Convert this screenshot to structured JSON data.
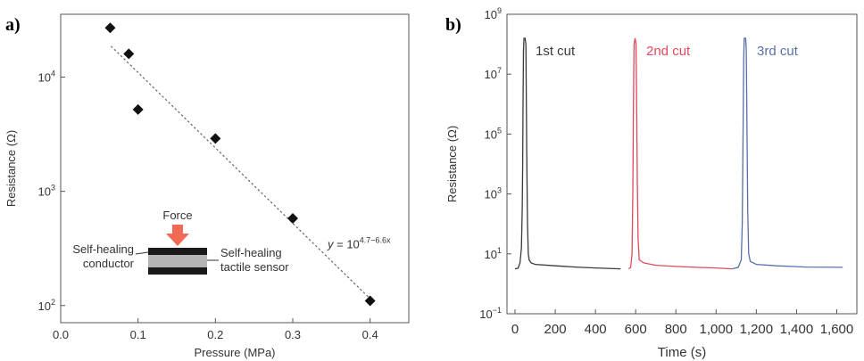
{
  "panel_labels": {
    "a": "a)",
    "b": "b)"
  },
  "chart_data": [
    {
      "type": "scatter",
      "xlabel": "Pressure (MPa)",
      "ylabel": "Resistance (Ω)",
      "xlim": [
        0.0,
        0.45
      ],
      "ylim_log10": [
        1.85,
        4.55
      ],
      "yscale": "log",
      "x_ticks": [
        "0.0",
        "0.1",
        "0.2",
        "0.3",
        "0.4"
      ],
      "x_tick_values": [
        0.0,
        0.1,
        0.2,
        0.3,
        0.4
      ],
      "y_ticks": [
        {
          "base": "10",
          "exp": "2",
          "value": 100
        },
        {
          "base": "10",
          "exp": "3",
          "value": 1000
        },
        {
          "base": "10",
          "exp": "4",
          "value": 10000
        }
      ],
      "points": [
        {
          "x": 0.064,
          "y": 27000
        },
        {
          "x": 0.088,
          "y": 16000
        },
        {
          "x": 0.1,
          "y": 5200
        },
        {
          "x": 0.2,
          "y": 2900
        },
        {
          "x": 0.3,
          "y": 580
        },
        {
          "x": 0.4,
          "y": 110
        }
      ],
      "fit": {
        "intercept_log10": 4.7,
        "slope_log10": -6.6,
        "x_range": [
          0.065,
          0.4
        ],
        "label_prefix": "y = 10",
        "label_exp": "4.7−6.6x"
      },
      "inset": {
        "force_label": "Force",
        "left_label_line1": "Self-healing",
        "left_label_line2": "conductor",
        "right_label_line1": "Self-healing",
        "right_label_line2": "tactile sensor",
        "arrow_color": "#f26a55"
      },
      "grid": false
    },
    {
      "type": "line",
      "xlabel": "Time (s)",
      "ylabel": "Resistance (Ω)",
      "xlim": [
        -40,
        1700
      ],
      "ylim_log10": [
        -1,
        9
      ],
      "yscale": "log",
      "x_ticks": [
        "0",
        "200",
        "400",
        "600",
        "800",
        "1,000",
        "1,200",
        "1,400",
        "1,600"
      ],
      "x_tick_values": [
        0,
        200,
        400,
        600,
        800,
        1000,
        1200,
        1400,
        1600
      ],
      "y_ticks": [
        {
          "base": "10",
          "exp": "−1",
          "log": -1
        },
        {
          "base": "10",
          "exp": "1",
          "log": 1
        },
        {
          "base": "10",
          "exp": "3",
          "log": 3
        },
        {
          "base": "10",
          "exp": "5",
          "log": 5
        },
        {
          "base": "10",
          "exp": "7",
          "log": 7
        },
        {
          "base": "10",
          "exp": "9",
          "log": 9
        }
      ],
      "series": [
        {
          "name": "1st cut",
          "color": "#3a3a3a",
          "points_log10": [
            [
              0,
              0.5
            ],
            [
              15,
              0.52
            ],
            [
              25,
              0.7
            ],
            [
              32,
              1.2
            ],
            [
              36,
              2.5
            ],
            [
              38,
              4.0
            ],
            [
              40,
              6.0
            ],
            [
              42,
              7.8
            ],
            [
              45,
              8.2
            ],
            [
              50,
              8.2
            ],
            [
              54,
              8.0
            ],
            [
              56,
              6.5
            ],
            [
              58,
              4.5
            ],
            [
              62,
              2.0
            ],
            [
              66,
              1.0
            ],
            [
              70,
              0.8
            ],
            [
              80,
              0.7
            ],
            [
              100,
              0.65
            ],
            [
              200,
              0.6
            ],
            [
              300,
              0.56
            ],
            [
              400,
              0.53
            ],
            [
              525,
              0.5
            ]
          ]
        },
        {
          "name": "2nd cut",
          "color": "#e04a5c",
          "points_log10": [
            [
              565,
              0.5
            ],
            [
              575,
              0.55
            ],
            [
              582,
              1.0
            ],
            [
              586,
              3.0
            ],
            [
              589,
              6.0
            ],
            [
              592,
              8.0
            ],
            [
              597,
              8.2
            ],
            [
              602,
              8.0
            ],
            [
              605,
              6.0
            ],
            [
              608,
              3.5
            ],
            [
              612,
              1.5
            ],
            [
              618,
              0.8
            ],
            [
              640,
              0.7
            ],
            [
              700,
              0.62
            ],
            [
              800,
              0.58
            ],
            [
              900,
              0.55
            ],
            [
              1000,
              0.53
            ],
            [
              1080,
              0.5
            ]
          ]
        },
        {
          "name": "3rd cut",
          "color": "#5870aa",
          "points_log10": [
            [
              1080,
              0.5
            ],
            [
              1110,
              0.55
            ],
            [
              1125,
              0.8
            ],
            [
              1130,
              2.0
            ],
            [
              1134,
              5.0
            ],
            [
              1137,
              7.5
            ],
            [
              1140,
              8.2
            ],
            [
              1147,
              8.2
            ],
            [
              1150,
              7.8
            ],
            [
              1153,
              5.5
            ],
            [
              1157,
              2.5
            ],
            [
              1162,
              1.0
            ],
            [
              1170,
              0.75
            ],
            [
              1200,
              0.65
            ],
            [
              1300,
              0.6
            ],
            [
              1450,
              0.56
            ],
            [
              1630,
              0.55
            ]
          ]
        }
      ],
      "grid": false
    }
  ]
}
